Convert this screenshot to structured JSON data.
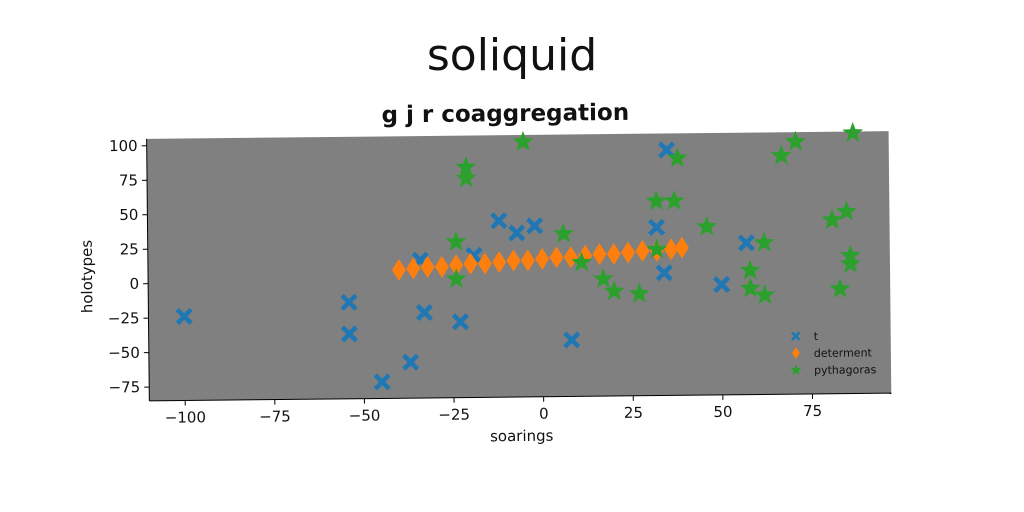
{
  "suptitle": "soliquid",
  "chart_data": {
    "type": "scatter",
    "title": "g j r coaggregation",
    "xlabel": "soarings",
    "ylabel": "holotypes",
    "xlim": [
      -110,
      97
    ],
    "ylim": [
      -85,
      105
    ],
    "xticks": [
      -100,
      -75,
      -50,
      -25,
      0,
      25,
      50,
      75
    ],
    "yticks": [
      -75,
      -50,
      -25,
      0,
      25,
      50,
      75,
      100
    ],
    "grid": false,
    "legend_position": "lower-right",
    "background": "#808080",
    "series": [
      {
        "name": "t",
        "marker": "x",
        "color": "#1f77b4",
        "points": [
          [
            -100,
            -24
          ],
          [
            -54,
            -15
          ],
          [
            -54,
            -38
          ],
          [
            -45,
            -73
          ],
          [
            -37,
            -59
          ],
          [
            -33,
            -23
          ],
          [
            -23,
            -30
          ],
          [
            -34,
            15
          ],
          [
            -19,
            18
          ],
          [
            -12,
            43
          ],
          [
            -7,
            34
          ],
          [
            -2,
            39
          ],
          [
            8,
            -44
          ],
          [
            32,
            37
          ],
          [
            35,
            93
          ],
          [
            34,
            4
          ],
          [
            50,
            -5
          ],
          [
            57,
            25
          ]
        ]
      },
      {
        "name": "determent",
        "marker": "diamond",
        "color": "#ff7f0e",
        "points": [
          [
            -40,
            8
          ],
          [
            -36,
            9
          ],
          [
            -32,
            10
          ],
          [
            -28,
            10
          ],
          [
            -24,
            11
          ],
          [
            -20,
            12
          ],
          [
            -16,
            12
          ],
          [
            -12,
            13
          ],
          [
            -8,
            14
          ],
          [
            -4,
            14
          ],
          [
            0,
            15
          ],
          [
            4,
            16
          ],
          [
            8,
            16
          ],
          [
            12,
            17
          ],
          [
            16,
            18
          ],
          [
            20,
            18
          ],
          [
            24,
            19
          ],
          [
            28,
            20
          ],
          [
            32,
            20
          ],
          [
            36,
            21
          ],
          [
            39,
            22
          ]
        ]
      },
      {
        "name": "pythagoras",
        "marker": "star",
        "color": "#2ca02c",
        "points": [
          [
            -24,
            28
          ],
          [
            -24,
            1
          ],
          [
            -21,
            82
          ],
          [
            -21,
            74
          ],
          [
            -5,
            100
          ],
          [
            6,
            33
          ],
          [
            11,
            12
          ],
          [
            17,
            0
          ],
          [
            20,
            -9
          ],
          [
            27,
            -11
          ],
          [
            32,
            56
          ],
          [
            32,
            21
          ],
          [
            37,
            56
          ],
          [
            38,
            87
          ],
          [
            46,
            37
          ],
          [
            58,
            5
          ],
          [
            58,
            -8
          ],
          [
            62,
            25
          ],
          [
            62,
            -13
          ],
          [
            67,
            88
          ],
          [
            71,
            98
          ],
          [
            81,
            41
          ],
          [
            83,
            -9
          ],
          [
            85,
            47
          ],
          [
            86,
            15
          ],
          [
            86,
            9
          ],
          [
            87,
            104
          ]
        ]
      }
    ]
  }
}
